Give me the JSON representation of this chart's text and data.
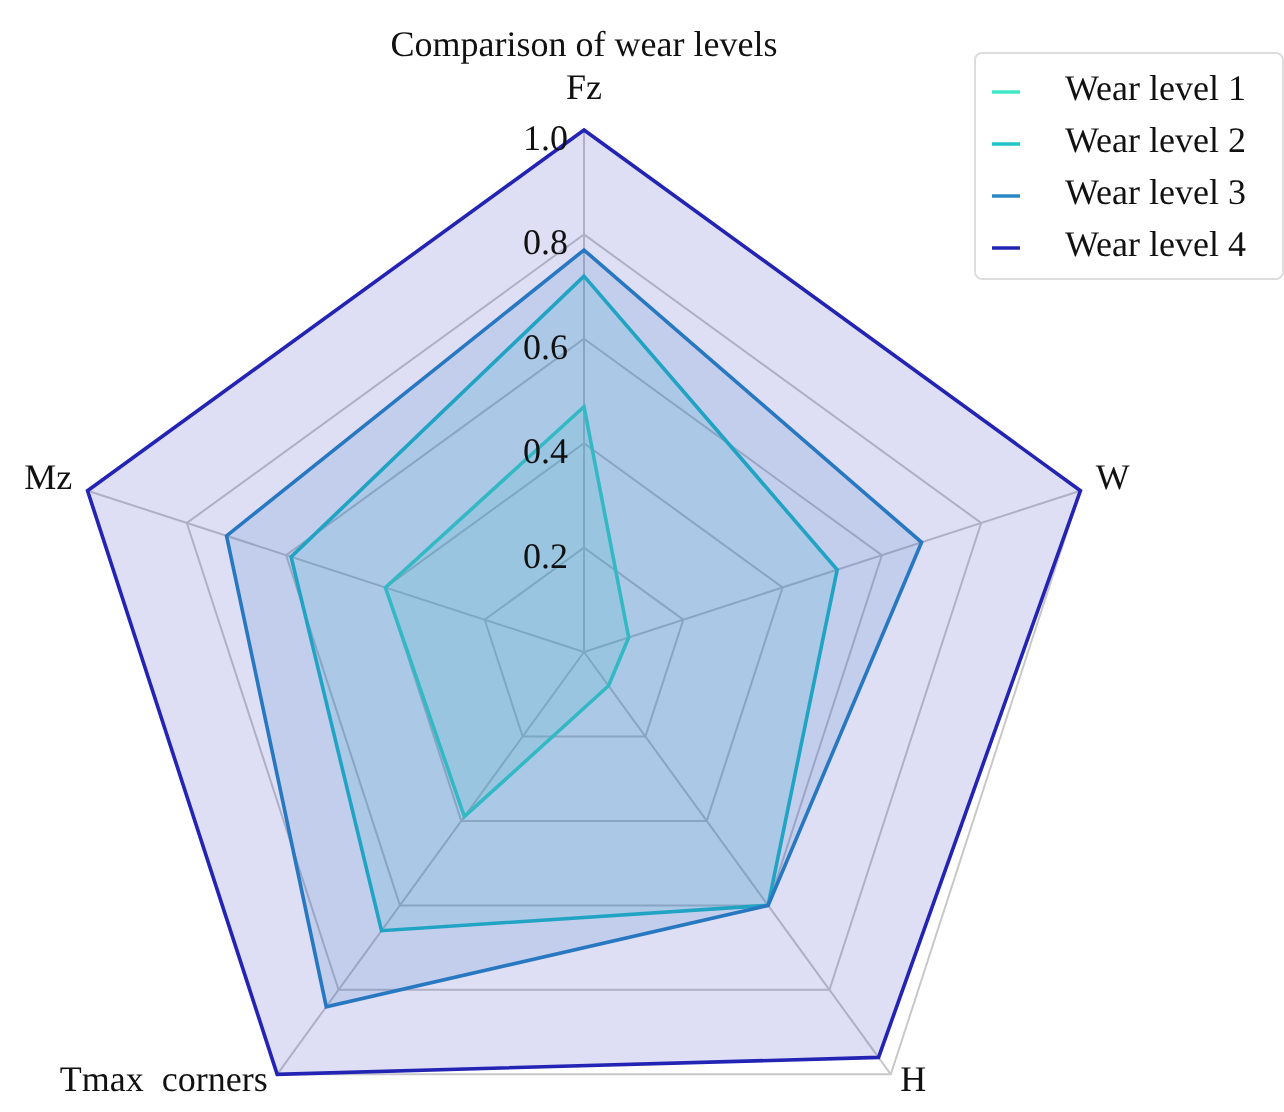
{
  "chart_data": {
    "type": "radar",
    "title": "Comparison of wear levels",
    "categories": [
      "Fz",
      "W",
      "H",
      "Tmax  corners",
      "Mz"
    ],
    "series": [
      {
        "name": "Wear level 1",
        "color": "#40e8c8",
        "values": [
          0.47,
          0.09,
          0.08,
          0.39,
          0.4
        ]
      },
      {
        "name": "Wear level 2",
        "color": "#22c4c8",
        "values": [
          0.72,
          0.51,
          0.6,
          0.66,
          0.59
        ]
      },
      {
        "name": "Wear level 3",
        "color": "#2a88c4",
        "values": [
          0.77,
          0.68,
          0.6,
          0.84,
          0.72
        ]
      },
      {
        "name": "Wear level 4",
        "color": "#2424b4",
        "values": [
          1.0,
          1.0,
          0.96,
          1.0,
          1.0
        ]
      }
    ],
    "ylim": [
      0,
      1
    ],
    "yticks": [
      0.2,
      0.4,
      0.6,
      0.8,
      {
        "value": 1,
        "label": "1.0"
      }
    ],
    "grid": true,
    "legend": "top right"
  }
}
